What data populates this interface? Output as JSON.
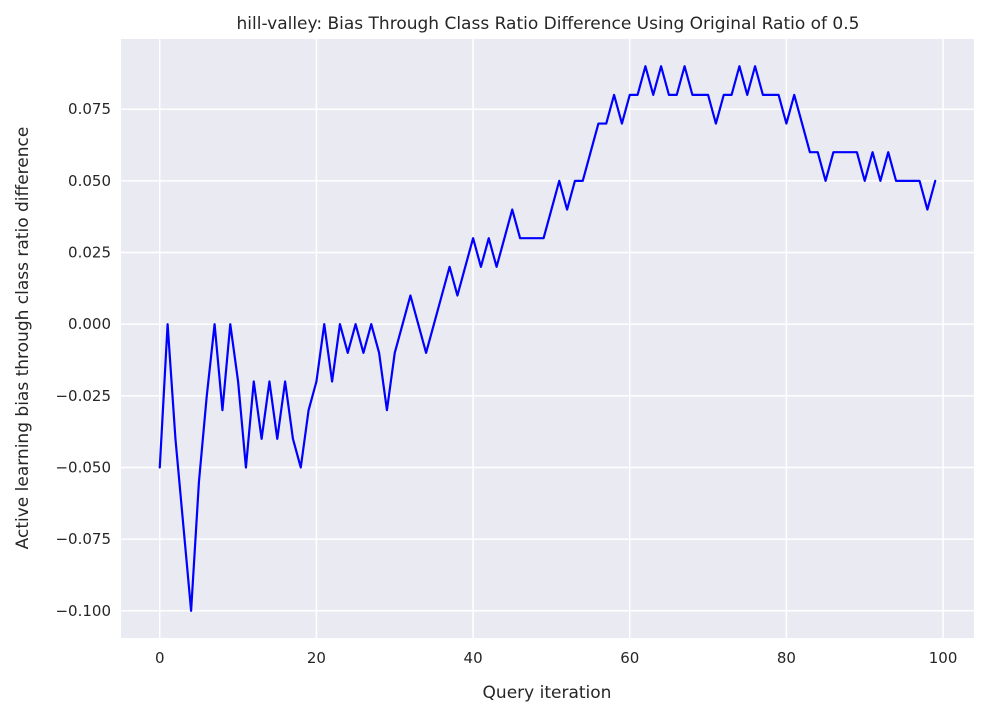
{
  "chart_data": {
    "type": "line",
    "title": "hill-valley: Bias Through Class Ratio Difference Using Original Ratio of 0.5",
    "xlabel": "Query iteration",
    "ylabel": "Active learning bias through class ratio difference",
    "xlim": [
      -4.95,
      103.95
    ],
    "ylim": [
      -0.1095,
      0.0995
    ],
    "xticks": [
      0,
      20,
      40,
      60,
      80,
      100
    ],
    "xtick_labels": [
      "0",
      "20",
      "40",
      "60",
      "80",
      "100"
    ],
    "yticks": [
      -0.1,
      -0.075,
      -0.05,
      -0.025,
      0.0,
      0.025,
      0.05,
      0.075
    ],
    "ytick_labels": [
      "−0.100",
      "−0.075",
      "−0.050",
      "−0.025",
      "0.000",
      "0.025",
      "0.050",
      "0.075"
    ],
    "grid": true,
    "background_color": "#eaeaf2",
    "line_color": "#0000ff",
    "series": [
      {
        "x": [
          0,
          1,
          2,
          3,
          4,
          5,
          6,
          7,
          8,
          9,
          10,
          11,
          12,
          13,
          14,
          15,
          16,
          17,
          18,
          19,
          20,
          21,
          22,
          23,
          24,
          25,
          26,
          27,
          28,
          29,
          30,
          31,
          32,
          33,
          34,
          35,
          36,
          37,
          38,
          39,
          40,
          41,
          42,
          43,
          44,
          45,
          46,
          47,
          48,
          49,
          50,
          51,
          52,
          53,
          54,
          55,
          56,
          57,
          58,
          59,
          60,
          61,
          62,
          63,
          64,
          65,
          66,
          67,
          68,
          69,
          70,
          71,
          72,
          73,
          74,
          75,
          76,
          77,
          78,
          79,
          80,
          81,
          82,
          83,
          84,
          85,
          86,
          87,
          88,
          89,
          90,
          91,
          92,
          93,
          94,
          95,
          96,
          97,
          98,
          99
        ],
        "values": [
          -0.05,
          0.0,
          -0.04,
          -0.07,
          -0.1,
          -0.055,
          -0.025,
          0.0,
          -0.03,
          0.0,
          -0.02,
          -0.05,
          -0.02,
          -0.04,
          -0.02,
          -0.04,
          -0.02,
          -0.04,
          -0.05,
          -0.03,
          -0.02,
          0.0,
          -0.02,
          0.0,
          -0.01,
          0.0,
          -0.01,
          0.0,
          -0.01,
          -0.03,
          -0.01,
          0.0,
          0.01,
          0.0,
          -0.01,
          0.0,
          0.01,
          0.02,
          0.01,
          0.02,
          0.03,
          0.02,
          0.03,
          0.02,
          0.03,
          0.04,
          0.03,
          0.03,
          0.03,
          0.03,
          0.04,
          0.05,
          0.04,
          0.05,
          0.05,
          0.06,
          0.07,
          0.07,
          0.08,
          0.07,
          0.08,
          0.08,
          0.09,
          0.08,
          0.09,
          0.08,
          0.08,
          0.09,
          0.08,
          0.08,
          0.08,
          0.07,
          0.08,
          0.08,
          0.09,
          0.08,
          0.09,
          0.08,
          0.08,
          0.08,
          0.07,
          0.08,
          0.07,
          0.06,
          0.06,
          0.05,
          0.06,
          0.06,
          0.06,
          0.06,
          0.05,
          0.06,
          0.05,
          0.06,
          0.05,
          0.05,
          0.05,
          0.05,
          0.04,
          0.05
        ]
      }
    ]
  }
}
